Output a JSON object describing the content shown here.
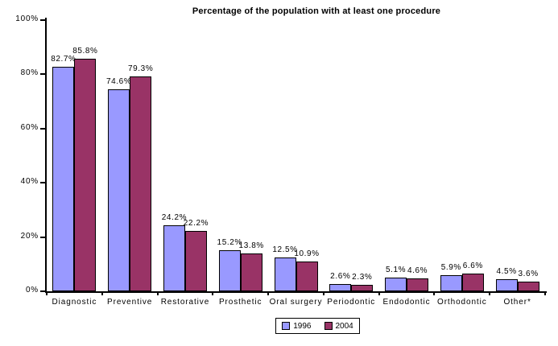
{
  "chart_data": {
    "type": "bar",
    "title": "Percentage of the population with at least one procedure",
    "categories": [
      "Diagnostic",
      "Preventive",
      "Restorative",
      "Prosthetic",
      "Oral surgery",
      "Periodontic",
      "Endodontic",
      "Orthodontic",
      "Other*"
    ],
    "series": [
      {
        "name": "1996",
        "color": "#9999FF",
        "values": [
          82.7,
          74.6,
          24.2,
          15.2,
          12.5,
          2.6,
          5.1,
          5.9,
          4.5
        ],
        "labels": [
          "82.7%",
          "74.6%",
          "24.2%",
          "15.2%",
          "12.5%",
          "2.6%",
          "5.1%",
          "5.9%",
          "4.5%"
        ]
      },
      {
        "name": "2004",
        "color": "#993366",
        "values": [
          85.8,
          79.3,
          22.2,
          13.8,
          10.9,
          2.3,
          4.6,
          6.6,
          3.6
        ],
        "labels": [
          "85.8%",
          "79.3%",
          "22.2%",
          "13.8%",
          "10.9%",
          "2.3%",
          "4.6%",
          "6.6%",
          "3.6%"
        ]
      }
    ],
    "xlabel": "",
    "ylabel": "",
    "ylim": [
      0,
      100
    ],
    "yticks": [
      "0%",
      "20%",
      "40%",
      "60%",
      "80%",
      "100%"
    ],
    "grid": false,
    "legend_position": "bottom",
    "data_labels": true,
    "axis_color": "#000000",
    "background_color": "#FFFFFF"
  }
}
